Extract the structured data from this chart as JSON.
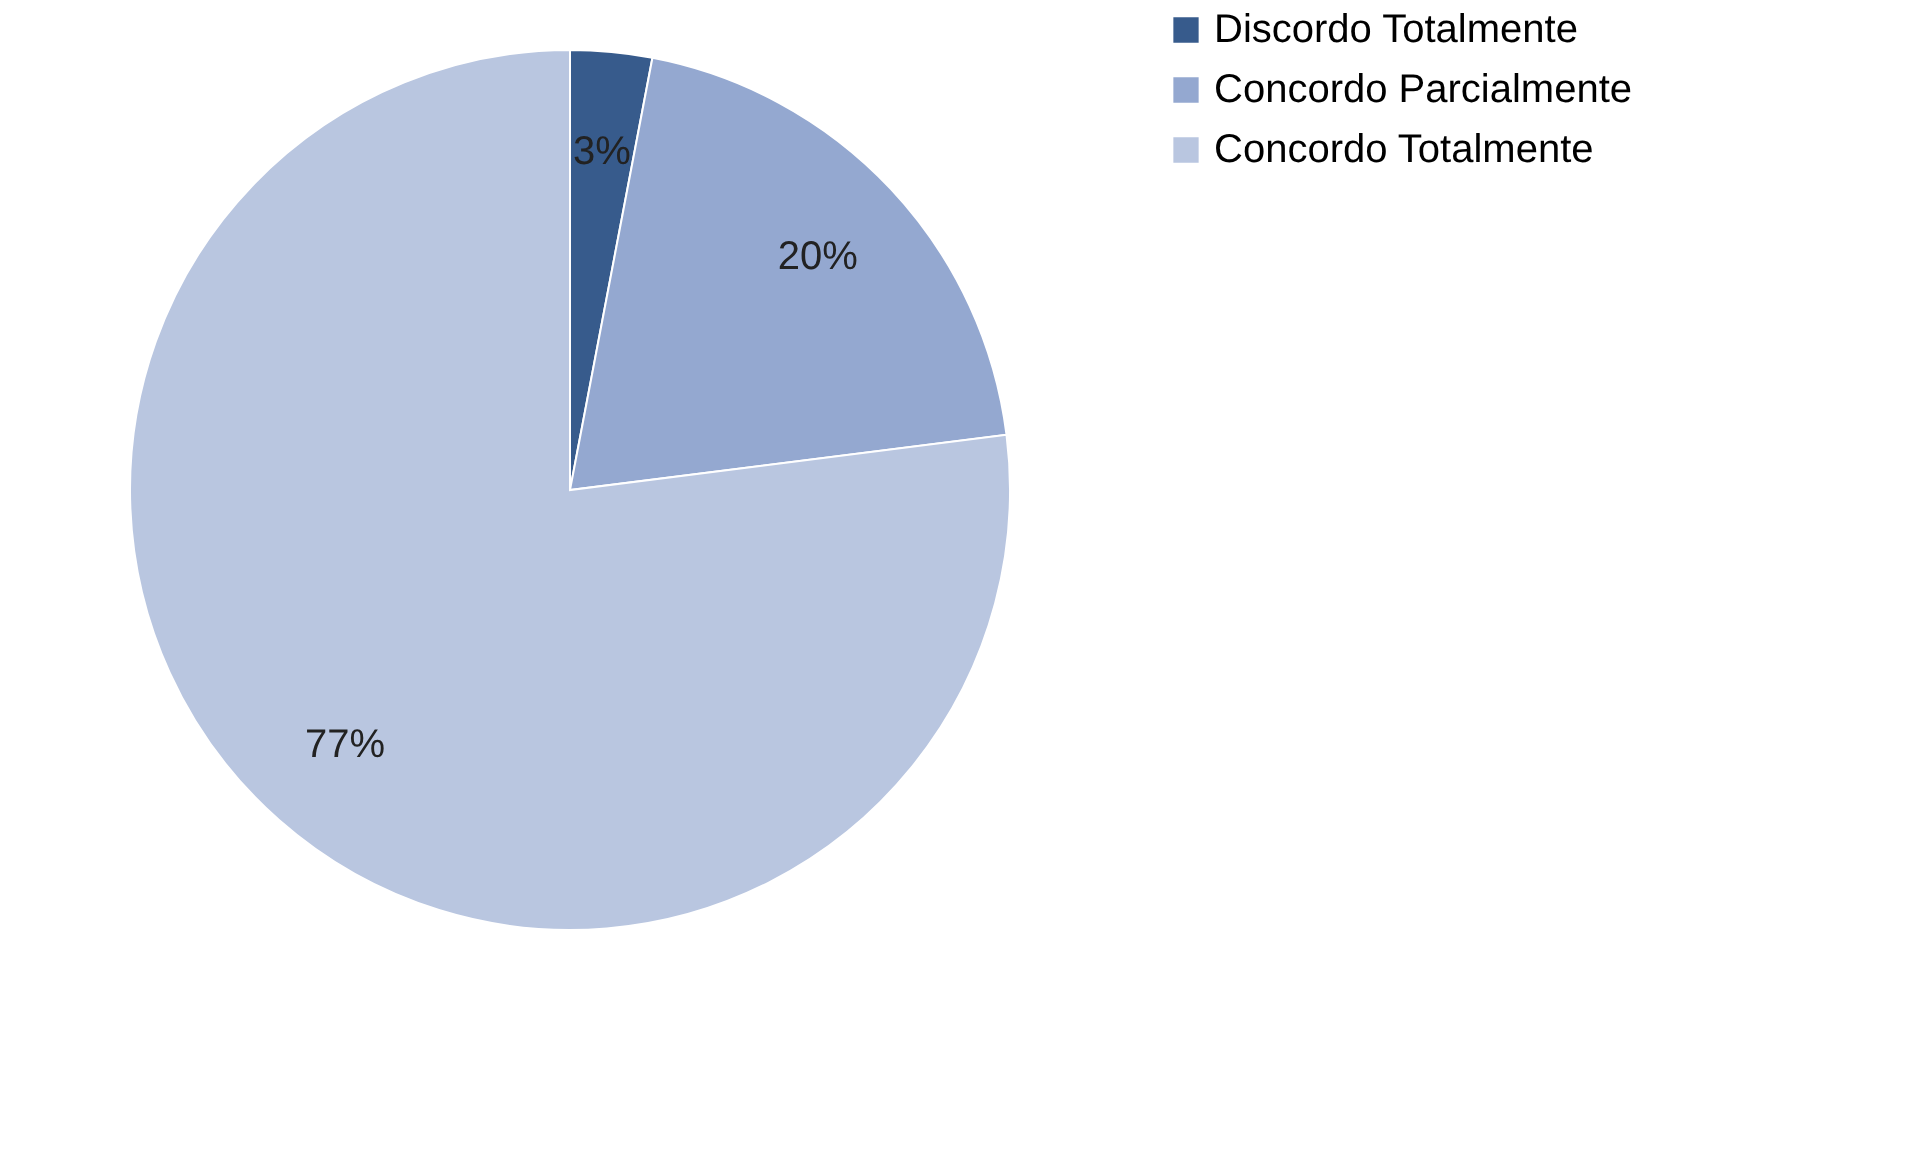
{
  "chart_data": {
    "type": "pie",
    "categories": [
      "Discordo Totalmente",
      "Concordo Parcialmente",
      "Concordo Totalmente"
    ],
    "values": [
      3,
      20,
      77
    ],
    "colors": [
      "#375b8c",
      "#94a8d0",
      "#b9c6e0"
    ],
    "value_labels": [
      "3%",
      "20%",
      "77%"
    ],
    "legend": "right"
  }
}
